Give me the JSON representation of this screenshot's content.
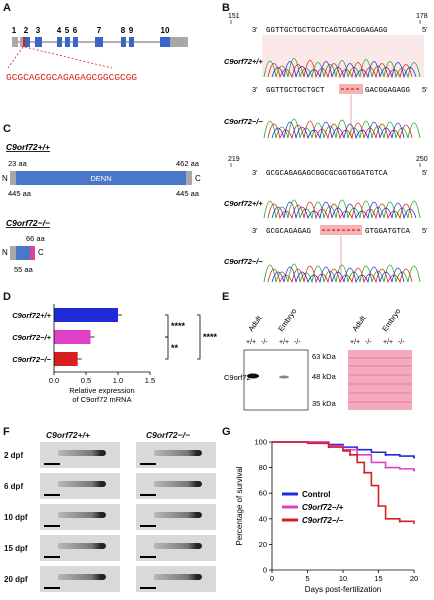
{
  "panels": {
    "a": "A",
    "b": "B",
    "c": "C",
    "d": "D",
    "e": "E",
    "f": "F",
    "g": "G"
  },
  "panel_a": {
    "exons": [
      "1",
      "2",
      "3",
      "4",
      "5",
      "6",
      "7",
      "8",
      "9",
      "10"
    ],
    "target_seq": "GCGCAGCGCAGAGAGCGGCGCGG"
  },
  "panel_b": {
    "block1": {
      "start": "151",
      "end": "178",
      "wt_seq": "GGTTGCTGCTGCTCAGTGACGGAGAGG",
      "mut_left": "GGTTGCTGCTGCT",
      "mut_right": "GACGGAGAGG"
    },
    "block2": {
      "start": "219",
      "end": "250",
      "wt_seq": "GCGCAGAGAGCGGCGCGGTGGATGTCA",
      "mut_left": "GCGCAGAGAG",
      "mut_right": "GTGGATGTCA"
    },
    "three": "3'",
    "five": "5'",
    "wt_label": "C9orf72+/+",
    "mut_label": "C9orf72−/−"
  },
  "panel_c": {
    "wt_title": "C9orf72+/+",
    "mut_title": "C9orf72−/−",
    "domain": "DENN",
    "wt_len_top": "23 aa",
    "wt_len_right": "462 aa",
    "wt_bot_left": "445 aa",
    "wt_bot_right": "445 aa",
    "mut_top": "66 aa",
    "mut_bot": "55 aa",
    "n": "N",
    "c": "C"
  },
  "panel_d": {
    "chart_data": {
      "type": "bar",
      "orientation": "horizontal",
      "categories": [
        "C9orf72+/+",
        "C9orf72−/+",
        "C9orf72−/−"
      ],
      "values": [
        1.0,
        0.57,
        0.37
      ],
      "colors": [
        "#1f2bd6",
        "#e040c8",
        "#d81f1f"
      ],
      "xlim": [
        0,
        1.5
      ],
      "xticks": [
        "0.0",
        "0.5",
        "1.0",
        "1.5"
      ],
      "xlabel": "Relative expression of C9orf72 mRNA",
      "significance": [
        "****",
        "**",
        "****"
      ]
    }
  },
  "panel_e": {
    "lanes": [
      "Adult",
      "Embryo"
    ],
    "genotypes": [
      "+/+",
      "-/-",
      "+/+",
      "-/-"
    ],
    "row_label": "C9orf72",
    "markers": [
      "63 kDa",
      "48 kDa",
      "35 kDa"
    ]
  },
  "panel_f": {
    "col_wt": "C9orf72+/+",
    "col_mut": "C9orf72−/−",
    "days": [
      "2 dpf",
      "6 dpf",
      "10 dpf",
      "15 dpf",
      "20 dpf"
    ]
  },
  "panel_g": {
    "chart_data": {
      "type": "line",
      "xlabel": "Days post-fertilization",
      "ylabel": "Percentage of survival",
      "xlim": [
        0,
        20
      ],
      "ylim": [
        0,
        100
      ],
      "xticks": [
        "0",
        "5",
        "10",
        "15",
        "20"
      ],
      "yticks": [
        "0",
        "20",
        "40",
        "60",
        "80",
        "100"
      ],
      "series": [
        {
          "name": "Control",
          "color": "#1f2bd6",
          "x": [
            0,
            5,
            8,
            10,
            12,
            14,
            16,
            18,
            20
          ],
          "y": [
            100,
            100,
            98,
            96,
            94,
            92,
            90,
            89,
            88
          ]
        },
        {
          "name": "C9orf72−/+",
          "color": "#e040c8",
          "x": [
            0,
            5,
            8,
            10,
            12,
            14,
            16,
            18,
            20
          ],
          "y": [
            100,
            100,
            97,
            94,
            90,
            84,
            80,
            79,
            78
          ]
        },
        {
          "name": "C9orf72−/−",
          "color": "#d81f1f",
          "x": [
            0,
            5,
            8,
            10,
            11,
            12,
            13,
            14,
            15,
            16,
            18,
            20
          ],
          "y": [
            100,
            99,
            96,
            93,
            90,
            84,
            76,
            66,
            50,
            40,
            38,
            36
          ]
        }
      ]
    }
  }
}
